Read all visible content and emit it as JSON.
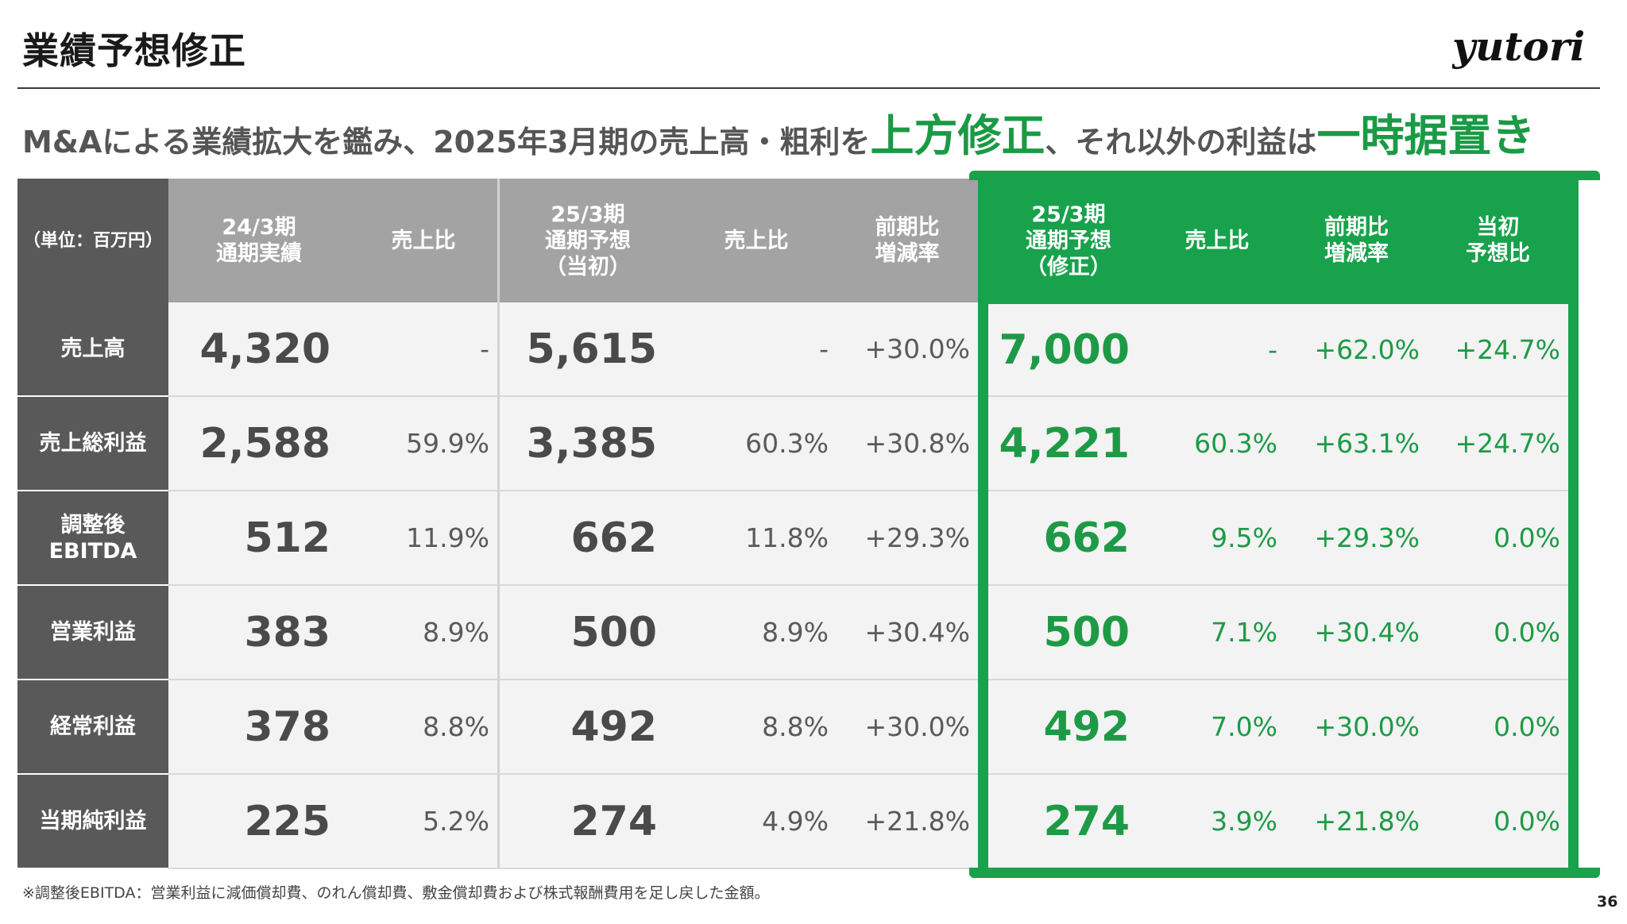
{
  "title": "業績予想修正",
  "logo_text": "yutori",
  "headline": {
    "part1": "M&Aによる業績拡大を鑑み、2025年3月期の売上高・粗利を",
    "emph1": "上方修正",
    "part2": "、それ以外の利益は",
    "emph2": "一時据置き"
  },
  "colors": {
    "accent_green": "#17a24b",
    "header_gray": "#a3a3a3",
    "label_dark": "#595959"
  },
  "table": {
    "headers": {
      "unit": "（単位：百万円）",
      "fy24_actual": "24/3期\n通期実績",
      "ratio1": "売上比",
      "fy25_initial": "25/3期\n通期予想\n（当初）",
      "ratio2": "売上比",
      "yoy1": "前期比\n増減率",
      "fy25_revised": "25/3期\n通期予想\n（修正）",
      "ratio3": "売上比",
      "yoy2": "前期比\n増減率",
      "vs_initial": "当初\n予想比"
    },
    "rows": [
      {
        "label": "売上高",
        "fy24": "4,320",
        "r1": "-",
        "fy25i": "5,615",
        "r2": "-",
        "yoy1": "+30.0%",
        "fy25r": "7,000",
        "r3": "-",
        "yoy2": "+62.0%",
        "vs": "+24.7%"
      },
      {
        "label": "売上総利益",
        "fy24": "2,588",
        "r1": "59.9%",
        "fy25i": "3,385",
        "r2": "60.3%",
        "yoy1": "+30.8%",
        "fy25r": "4,221",
        "r3": "60.3%",
        "yoy2": "+63.1%",
        "vs": "+24.7%"
      },
      {
        "label": "調整後\nEBITDA",
        "fy24": "512",
        "r1": "11.9%",
        "fy25i": "662",
        "r2": "11.8%",
        "yoy1": "+29.3%",
        "fy25r": "662",
        "r3": "9.5%",
        "yoy2": "+29.3%",
        "vs": "0.0%"
      },
      {
        "label": "営業利益",
        "fy24": "383",
        "r1": "8.9%",
        "fy25i": "500",
        "r2": "8.9%",
        "yoy1": "+30.4%",
        "fy25r": "500",
        "r3": "7.1%",
        "yoy2": "+30.4%",
        "vs": "0.0%"
      },
      {
        "label": "経常利益",
        "fy24": "378",
        "r1": "8.8%",
        "fy25i": "492",
        "r2": "8.8%",
        "yoy1": "+30.0%",
        "fy25r": "492",
        "r3": "7.0%",
        "yoy2": "+30.0%",
        "vs": "0.0%"
      },
      {
        "label": "当期純利益",
        "fy24": "225",
        "r1": "5.2%",
        "fy25i": "274",
        "r2": "4.9%",
        "yoy1": "+21.8%",
        "fy25r": "274",
        "r3": "3.9%",
        "yoy2": "+21.8%",
        "vs": "0.0%"
      }
    ]
  },
  "footnote": "※調整後EBITDA：営業利益に減価償却費、のれん償却費、敷金償却費および株式報酬費用を足し戻した金額。",
  "page_number": "36"
}
